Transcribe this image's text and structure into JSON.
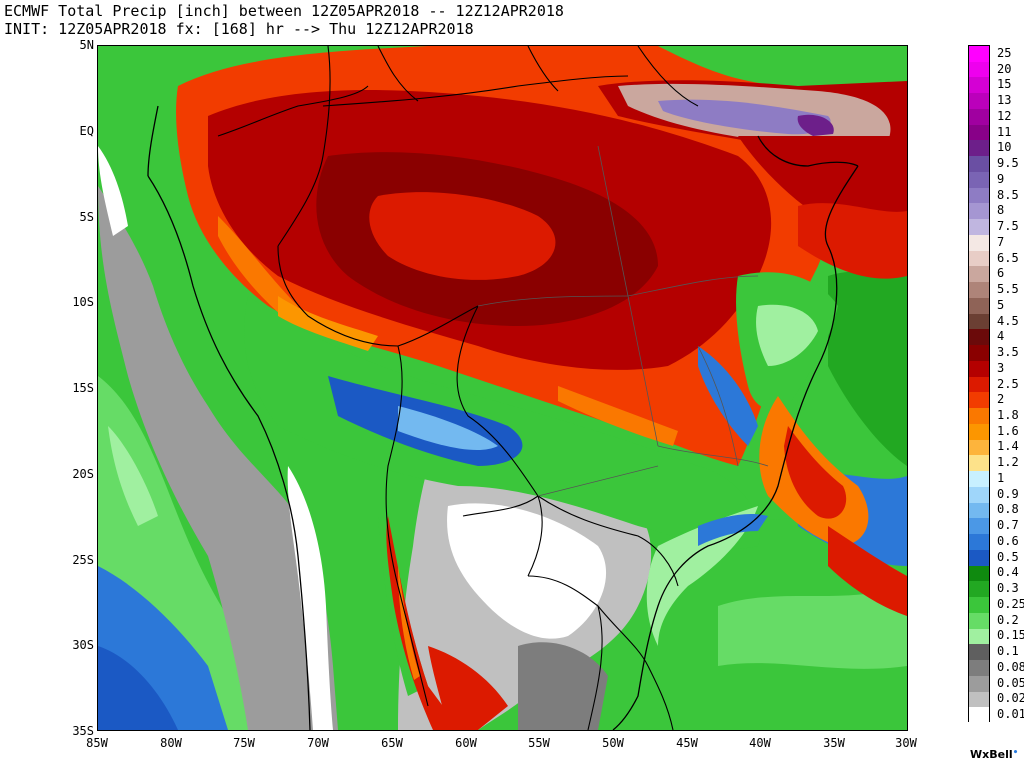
{
  "header": {
    "line1": "ECMWF Total Precip [inch] between 12Z05APR2018 -- 12Z12APR2018",
    "line2": "INIT: 12Z05APR2018 fx: [168] hr --> Thu 12Z12APR2018"
  },
  "axes": {
    "lat_labels": [
      "5N",
      "EQ",
      "5S",
      "10S",
      "15S",
      "20S",
      "25S",
      "30S",
      "35S"
    ],
    "lon_labels": [
      "85W",
      "80W",
      "75W",
      "70W",
      "65W",
      "60W",
      "55W",
      "50W",
      "45W",
      "40W",
      "35W",
      "30W"
    ]
  },
  "colorbar": {
    "entries": [
      {
        "label": "25",
        "color": "#ff00ff"
      },
      {
        "label": "20",
        "color": "#ee00ee"
      },
      {
        "label": "15",
        "color": "#d400d4"
      },
      {
        "label": "13",
        "color": "#bb00bb"
      },
      {
        "label": "12",
        "color": "#a000a0"
      },
      {
        "label": "11",
        "color": "#880088"
      },
      {
        "label": "10",
        "color": "#6d1f8a"
      },
      {
        "label": "9.5",
        "color": "#6a4fa3"
      },
      {
        "label": "9",
        "color": "#7a64b4"
      },
      {
        "label": "8.5",
        "color": "#8e7cc4"
      },
      {
        "label": "8",
        "color": "#a596d2"
      },
      {
        "label": "7.5",
        "color": "#c0b6e0"
      },
      {
        "label": "7",
        "color": "#f4e8e4"
      },
      {
        "label": "6.5",
        "color": "#e8cdc6"
      },
      {
        "label": "6",
        "color": "#caa79e"
      },
      {
        "label": "5.5",
        "color": "#ae8479"
      },
      {
        "label": "5",
        "color": "#8f6357"
      },
      {
        "label": "4.5",
        "color": "#6b3f33"
      },
      {
        "label": "4",
        "color": "#6b0a0a"
      },
      {
        "label": "3.5",
        "color": "#8a0000"
      },
      {
        "label": "3",
        "color": "#b40000"
      },
      {
        "label": "2.5",
        "color": "#dc1a00"
      },
      {
        "label": "2",
        "color": "#f23c00"
      },
      {
        "label": "1.8",
        "color": "#fa7800"
      },
      {
        "label": "1.6",
        "color": "#fc9600"
      },
      {
        "label": "1.4",
        "color": "#fdb43c"
      },
      {
        "label": "1.2",
        "color": "#fde28a"
      },
      {
        "label": "1",
        "color": "#c8f0ff"
      },
      {
        "label": "0.9",
        "color": "#9fd6fa"
      },
      {
        "label": "0.8",
        "color": "#73b9f0"
      },
      {
        "label": "0.7",
        "color": "#4b98e6"
      },
      {
        "label": "0.6",
        "color": "#2c78d8"
      },
      {
        "label": "0.5",
        "color": "#1b59c4"
      },
      {
        "label": "0.4",
        "color": "#0f8a0f"
      },
      {
        "label": "0.3",
        "color": "#22a822"
      },
      {
        "label": "0.25",
        "color": "#3bc63b"
      },
      {
        "label": "0.2",
        "color": "#66dc66"
      },
      {
        "label": "0.15",
        "color": "#a0f0a0"
      },
      {
        "label": "0.1",
        "color": "#5f5f5f"
      },
      {
        "label": "0.08",
        "color": "#7d7d7d"
      },
      {
        "label": "0.05",
        "color": "#9c9c9c"
      },
      {
        "label": "0.02",
        "color": "#c0c0c0"
      },
      {
        "label": "0.01",
        "color": "#ffffff"
      }
    ]
  },
  "brand": "WxBell"
}
